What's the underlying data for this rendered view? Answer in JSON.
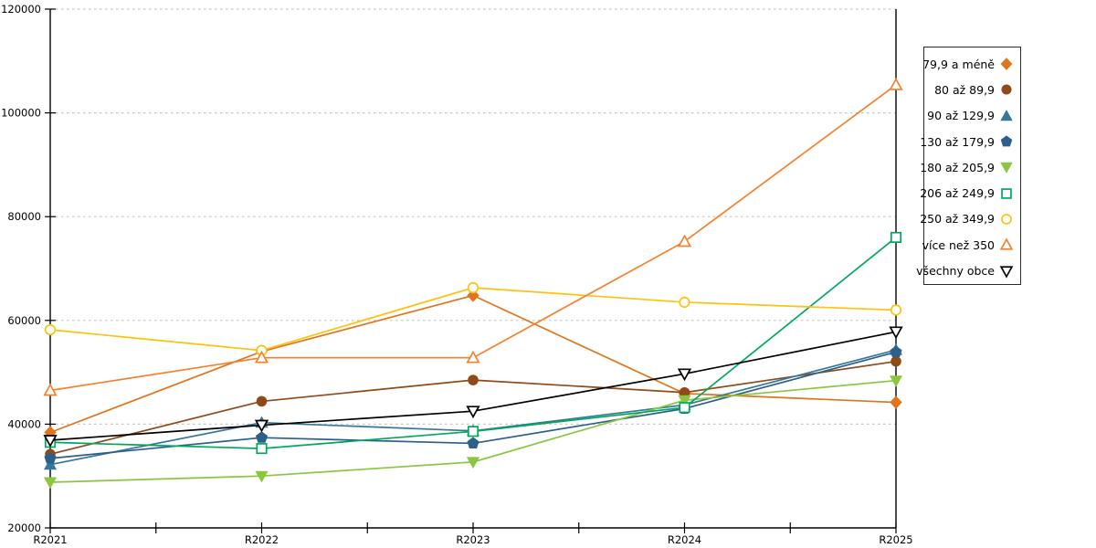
{
  "chart_data": {
    "type": "line",
    "title": "",
    "xlabel": "",
    "ylabel": "",
    "categories": [
      "R2021",
      "R2022",
      "R2023",
      "R2024",
      "R2025"
    ],
    "series": [
      {
        "name": "79,9 a méně",
        "marker": "diamond",
        "fill": "solid",
        "color": "#E2741B",
        "values": [
          38400,
          54000,
          64800,
          45900,
          44200
        ]
      },
      {
        "name": "80 až 89,9",
        "marker": "circle",
        "fill": "solid",
        "color": "#8F4A19",
        "values": [
          34200,
          44400,
          48500,
          46100,
          52100
        ]
      },
      {
        "name": "90 až 129,9",
        "marker": "triangle-up",
        "fill": "solid",
        "color": "#35789B",
        "values": [
          32200,
          40300,
          38700,
          43700,
          54300
        ]
      },
      {
        "name": "130 až 179,9",
        "marker": "pentagon",
        "fill": "solid",
        "color": "#2D5F8B",
        "values": [
          33400,
          37400,
          36300,
          43000,
          53900
        ]
      },
      {
        "name": "180 až 205,9",
        "marker": "triangle-down",
        "fill": "solid",
        "color": "#8CC63F",
        "values": [
          28800,
          30000,
          32700,
          44600,
          48400
        ]
      },
      {
        "name": "206 až 249,9",
        "marker": "square",
        "fill": "open",
        "color": "#00A85D",
        "values": [
          36500,
          35300,
          38600,
          43200,
          76000
        ]
      },
      {
        "name": "250 až 349,9",
        "marker": "circle",
        "fill": "open",
        "color": "#FFC20E",
        "values": [
          58200,
          54200,
          66300,
          63500,
          62000
        ]
      },
      {
        "name": "více než 350",
        "marker": "triangle-up",
        "fill": "open",
        "color": "#F5812E",
        "values": [
          46500,
          52800,
          52800,
          75200,
          105400
        ]
      },
      {
        "name": "všechny obce",
        "marker": "triangle-down",
        "fill": "open",
        "color": "#000000",
        "values": [
          36900,
          39800,
          42500,
          49700,
          57800
        ]
      }
    ],
    "ylim": [
      20000,
      120000
    ],
    "ytick_step": 20000,
    "ytick_labels": [
      "20000",
      "40000",
      "60000",
      "80000",
      "100000",
      "120000"
    ],
    "grid": "dashed-horizontal",
    "grid_color": "#c6c6c6",
    "axis_color": "#000000",
    "legend_position": "right",
    "legend_marker_side": "right"
  }
}
